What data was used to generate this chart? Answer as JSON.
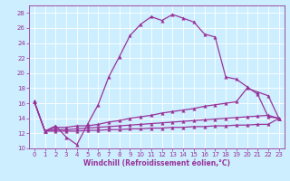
{
  "xlabel": "Windchill (Refroidissement éolien,°C)",
  "background_color": "#cceeff",
  "grid_color": "#ffffff",
  "line_color": "#993399",
  "xlim": [
    -0.5,
    23.5
  ],
  "ylim": [
    10,
    29
  ],
  "yticks": [
    10,
    12,
    14,
    16,
    18,
    20,
    22,
    24,
    26,
    28
  ],
  "xticks": [
    0,
    1,
    2,
    3,
    4,
    5,
    6,
    7,
    8,
    9,
    10,
    11,
    12,
    13,
    14,
    15,
    16,
    17,
    18,
    19,
    20,
    21,
    22,
    23
  ],
  "line1_x": [
    0,
    1,
    2,
    3,
    4,
    5,
    6,
    7,
    8,
    9,
    10,
    11,
    12,
    13,
    14,
    15,
    16,
    17,
    18,
    19,
    20,
    21,
    22,
    23
  ],
  "line1_y": [
    16.2,
    12.3,
    13.0,
    11.5,
    10.5,
    13.2,
    15.8,
    19.5,
    22.2,
    25.0,
    26.5,
    27.5,
    27.0,
    27.8,
    27.3,
    26.8,
    25.2,
    24.8,
    19.5,
    19.2,
    18.2,
    17.2,
    14.2,
    14.0
  ],
  "line2_x": [
    0,
    1,
    2,
    3,
    4,
    5,
    6,
    7,
    8,
    9,
    10,
    11,
    12,
    13,
    14,
    15,
    16,
    17,
    18,
    19,
    20,
    21,
    22,
    23
  ],
  "line2_y": [
    16.2,
    12.3,
    12.8,
    12.8,
    13.0,
    13.0,
    13.2,
    13.5,
    13.7,
    14.0,
    14.2,
    14.4,
    14.7,
    14.9,
    15.1,
    15.3,
    15.6,
    15.8,
    16.0,
    16.2,
    18.0,
    17.5,
    17.0,
    14.0
  ],
  "line3_x": [
    0,
    1,
    2,
    3,
    4,
    5,
    6,
    7,
    8,
    9,
    10,
    11,
    12,
    13,
    14,
    15,
    16,
    17,
    18,
    19,
    20,
    21,
    22,
    23
  ],
  "line3_y": [
    16.2,
    12.3,
    12.5,
    12.5,
    12.6,
    12.7,
    12.8,
    12.9,
    13.0,
    13.1,
    13.2,
    13.3,
    13.4,
    13.5,
    13.6,
    13.7,
    13.8,
    13.9,
    14.0,
    14.1,
    14.2,
    14.3,
    14.4,
    14.0
  ],
  "line4_x": [
    0,
    1,
    2,
    3,
    4,
    5,
    6,
    7,
    8,
    9,
    10,
    11,
    12,
    13,
    14,
    15,
    16,
    17,
    18,
    19,
    20,
    21,
    22,
    23
  ],
  "line4_y": [
    16.2,
    12.3,
    12.3,
    12.3,
    12.3,
    12.4,
    12.4,
    12.5,
    12.5,
    12.6,
    12.6,
    12.7,
    12.7,
    12.8,
    12.8,
    12.9,
    12.9,
    13.0,
    13.0,
    13.1,
    13.1,
    13.2,
    13.2,
    14.0
  ],
  "label_fontsize": 5,
  "xlabel_fontsize": 5.5
}
